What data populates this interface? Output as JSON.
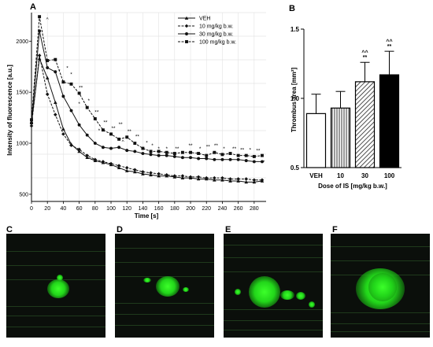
{
  "panels": {
    "a": "A",
    "b": "B",
    "c": "C",
    "d": "D",
    "e": "E",
    "f": "F"
  },
  "chart_data": [
    {
      "type": "line",
      "xlabel": "Time [s]",
      "ylabel": "Intensity of fluorescence [a.u.]",
      "x": [
        0,
        10,
        20,
        30,
        40,
        50,
        60,
        70,
        80,
        90,
        100,
        110,
        120,
        130,
        140,
        150,
        160,
        170,
        180,
        190,
        200,
        210,
        220,
        230,
        240,
        250,
        260,
        270,
        280,
        290
      ],
      "xticks": [
        0,
        20,
        40,
        60,
        80,
        100,
        120,
        140,
        160,
        180,
        200,
        220,
        240,
        260,
        280
      ],
      "yticks": [
        500,
        1000,
        1500,
        2000
      ],
      "xlim": [
        0,
        295
      ],
      "ylim": [
        430,
        2280
      ],
      "grid": true,
      "legend_position": "top-right",
      "series": [
        {
          "name": "VEH",
          "marker": "triangle",
          "dash": "solid",
          "values": [
            1200,
            1830,
            1640,
            1400,
            1140,
            990,
            920,
            860,
            830,
            810,
            790,
            760,
            730,
            720,
            700,
            690,
            680,
            680,
            670,
            660,
            660,
            650,
            650,
            640,
            640,
            630,
            630,
            620,
            620,
            630
          ]
        },
        {
          "name": "10 mg/kg b.w.",
          "marker": "diamond",
          "dash": "dashed",
          "values": [
            1170,
            1860,
            1480,
            1280,
            1090,
            980,
            940,
            880,
            840,
            820,
            800,
            780,
            760,
            740,
            720,
            710,
            700,
            690,
            680,
            680,
            670,
            670,
            660,
            660,
            660,
            650,
            650,
            650,
            640,
            640
          ]
        },
        {
          "name": "30 mg/kg b.w.",
          "marker": "circle",
          "dash": "solid",
          "values": [
            1200,
            2100,
            1740,
            1700,
            1460,
            1320,
            1180,
            1080,
            1000,
            960,
            950,
            960,
            930,
            920,
            900,
            890,
            880,
            880,
            870,
            860,
            860,
            850,
            850,
            840,
            840,
            840,
            840,
            830,
            820,
            820
          ]
        },
        {
          "name": "100 mg/kg b.w.",
          "marker": "square",
          "dash": "dashed",
          "values": [
            1230,
            2240,
            1810,
            1820,
            1600,
            1580,
            1490,
            1350,
            1240,
            1130,
            1090,
            1040,
            1060,
            1000,
            950,
            920,
            920,
            910,
            900,
            910,
            910,
            900,
            880,
            910,
            890,
            900,
            880,
            880,
            870,
            880
          ]
        }
      ],
      "annotations": [
        {
          "x": 20,
          "y": 2200,
          "text": "^"
        },
        {
          "x": 35,
          "y": 1690,
          "text": "*"
        },
        {
          "x": 45,
          "y": 1720,
          "text": "*"
        },
        {
          "x": 50,
          "y": 1660,
          "text": "*"
        },
        {
          "x": 62,
          "y": 1530,
          "text": "**"
        },
        {
          "x": 60,
          "y": 1370,
          "text": "*"
        },
        {
          "x": 72,
          "y": 1400,
          "text": "*"
        },
        {
          "x": 82,
          "y": 1290,
          "text": "**"
        },
        {
          "x": 85,
          "y": 1110,
          "text": "*"
        },
        {
          "x": 93,
          "y": 1190,
          "text": "**"
        },
        {
          "x": 103,
          "y": 1130,
          "text": "**"
        },
        {
          "x": 112,
          "y": 1170,
          "text": "**"
        },
        {
          "x": 115,
          "y": 1000,
          "text": "^"
        },
        {
          "x": 123,
          "y": 1100,
          "text": "**"
        },
        {
          "x": 133,
          "y": 1050,
          "text": "**"
        },
        {
          "x": 145,
          "y": 990,
          "text": "*"
        },
        {
          "x": 152,
          "y": 960,
          "text": "*"
        },
        {
          "x": 160,
          "y": 930,
          "text": "*"
        },
        {
          "x": 170,
          "y": 930,
          "text": "*"
        },
        {
          "x": 183,
          "y": 930,
          "text": "**"
        },
        {
          "x": 200,
          "y": 960,
          "text": "**"
        },
        {
          "x": 212,
          "y": 930,
          "text": "*"
        },
        {
          "x": 222,
          "y": 950,
          "text": "**"
        },
        {
          "x": 232,
          "y": 960,
          "text": "**"
        },
        {
          "x": 242,
          "y": 930,
          "text": "*"
        },
        {
          "x": 255,
          "y": 930,
          "text": "**"
        },
        {
          "x": 265,
          "y": 920,
          "text": "**"
        },
        {
          "x": 275,
          "y": 920,
          "text": "*"
        },
        {
          "x": 285,
          "y": 910,
          "text": "**"
        },
        {
          "x": 292,
          "y": 800,
          "text": "*"
        }
      ]
    },
    {
      "type": "bar",
      "xlabel": "Dose of IS [mg/kg b.w.]",
      "ylabel": "Thrombus area [mm²]",
      "categories": [
        "VEH",
        "10",
        "30",
        "100"
      ],
      "values": [
        0.89,
        0.93,
        1.12,
        1.17
      ],
      "errors": [
        0.14,
        0.12,
        0.14,
        0.17
      ],
      "fills": [
        "white",
        "vertical-hatch",
        "diagonal-hatch",
        "black"
      ],
      "significance": [
        "",
        "",
        "^^\n**",
        "^^\n**"
      ],
      "ylim": [
        0.5,
        1.5
      ],
      "yticks": [
        "0.5",
        "1.0",
        "1.5"
      ]
    }
  ]
}
